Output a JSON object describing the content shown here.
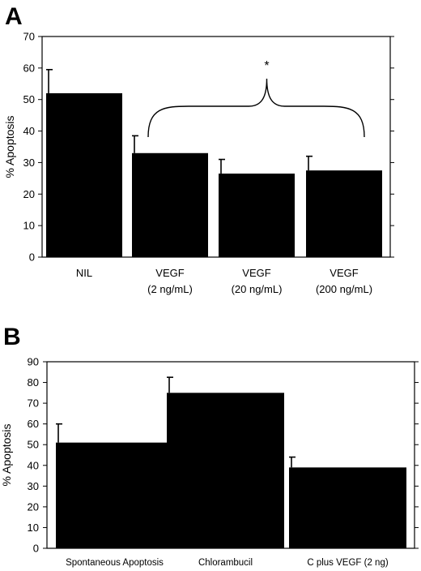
{
  "chart_data": [
    {
      "panel": "A",
      "type": "bar",
      "title": "",
      "xlabel": "",
      "ylabel": "% Apoptosis",
      "ylim": [
        0,
        70
      ],
      "yticks": [
        0,
        10,
        20,
        30,
        40,
        50,
        60,
        70
      ],
      "grid": false,
      "categories": [
        {
          "line1": "NIL",
          "line2": ""
        },
        {
          "line1": "VEGF",
          "line2": "(2 ng/mL)"
        },
        {
          "line1": "VEGF",
          "line2": "(20 ng/mL)"
        },
        {
          "line1": "VEGF",
          "line2": "(200 ng/mL)"
        }
      ],
      "values": [
        52,
        33,
        26.5,
        27.5
      ],
      "errors": [
        7.5,
        5.5,
        4.5,
        4.5
      ],
      "annotation": {
        "text": "*",
        "groups": [
          1,
          3
        ]
      }
    },
    {
      "panel": "B",
      "type": "bar",
      "title": "",
      "xlabel": "",
      "ylabel": "% Apoptosis",
      "ylim": [
        0,
        90
      ],
      "yticks": [
        0,
        10,
        20,
        30,
        40,
        50,
        60,
        70,
        80,
        90
      ],
      "grid": false,
      "categories": [
        {
          "line1": "Spontaneous Apoptosis",
          "line2": ""
        },
        {
          "line1": "Chlorambucil",
          "line2": ""
        },
        {
          "line1": "C plus VEGF (2 ng)",
          "line2": ""
        }
      ],
      "values": [
        51,
        75,
        39
      ],
      "errors": [
        9,
        7.5,
        5
      ]
    }
  ]
}
